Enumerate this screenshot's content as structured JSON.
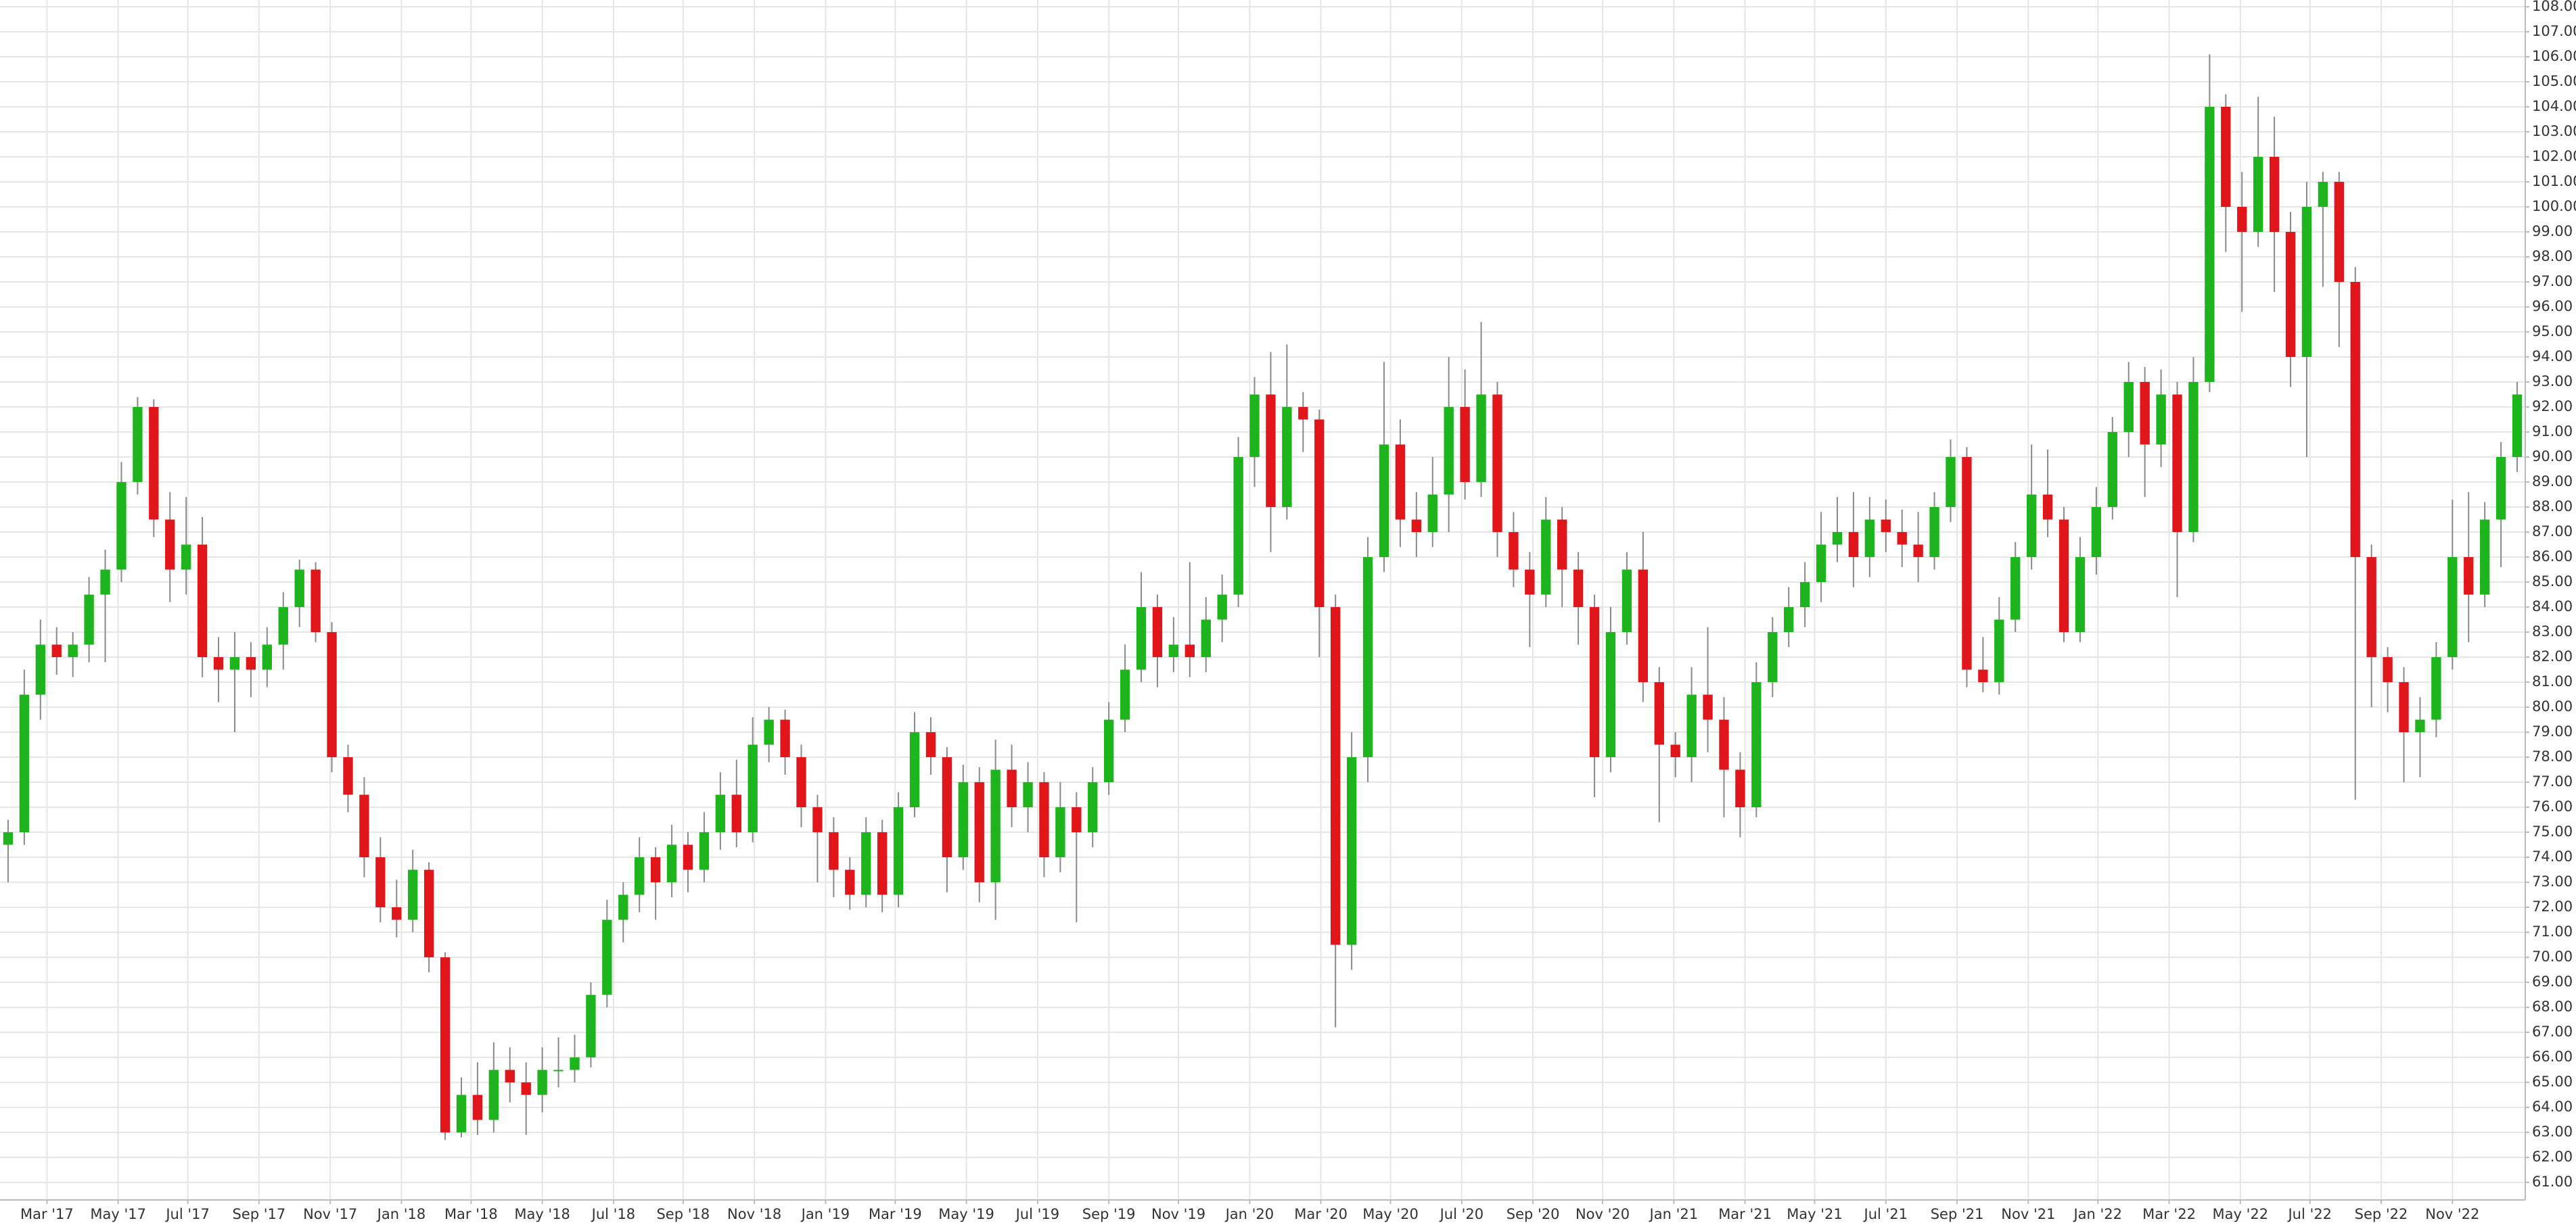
{
  "chart_data": {
    "type": "candlestick",
    "up_color": "#1db41d",
    "down_color": "#e0161b",
    "wick_color": "#8a8a8a",
    "grid": true,
    "xlim": [
      -0.5,
      155.5
    ],
    "ylim": [
      60.3,
      108.27
    ],
    "xticks": [
      {
        "value": 2.4,
        "label": "Mar '17"
      },
      {
        "value": 6.8,
        "label": "May '17"
      },
      {
        "value": 11.1,
        "label": "Jul '17"
      },
      {
        "value": 15.5,
        "label": "Sep '17"
      },
      {
        "value": 19.9,
        "label": "Nov '17"
      },
      {
        "value": 24.3,
        "label": "Jan '18"
      },
      {
        "value": 28.6,
        "label": "Mar '18"
      },
      {
        "value": 33.0,
        "label": "May '18"
      },
      {
        "value": 37.4,
        "label": "Jul '18"
      },
      {
        "value": 41.7,
        "label": "Sep '18"
      },
      {
        "value": 46.1,
        "label": "Nov '18"
      },
      {
        "value": 50.5,
        "label": "Jan '19"
      },
      {
        "value": 54.8,
        "label": "Mar '19"
      },
      {
        "value": 59.2,
        "label": "May '19"
      },
      {
        "value": 63.6,
        "label": "Jul '19"
      },
      {
        "value": 68.0,
        "label": "Sep '19"
      },
      {
        "value": 72.3,
        "label": "Nov '19"
      },
      {
        "value": 76.7,
        "label": "Jan '20"
      },
      {
        "value": 81.1,
        "label": "Mar '20"
      },
      {
        "value": 85.4,
        "label": "May '20"
      },
      {
        "value": 89.8,
        "label": "Jul '20"
      },
      {
        "value": 94.2,
        "label": "Sep '20"
      },
      {
        "value": 98.5,
        "label": "Nov '20"
      },
      {
        "value": 102.9,
        "label": "Jan '21"
      },
      {
        "value": 107.3,
        "label": "Mar '21"
      },
      {
        "value": 111.6,
        "label": "May '21"
      },
      {
        "value": 116.0,
        "label": "Jul '21"
      },
      {
        "value": 120.4,
        "label": "Sep '21"
      },
      {
        "value": 124.8,
        "label": "Nov '21"
      },
      {
        "value": 129.1,
        "label": "Jan '22"
      },
      {
        "value": 133.5,
        "label": "Mar '22"
      },
      {
        "value": 137.9,
        "label": "May '22"
      },
      {
        "value": 142.2,
        "label": "Jul '22"
      },
      {
        "value": 146.6,
        "label": "Sep '22"
      },
      {
        "value": 151.0,
        "label": "Nov '22"
      }
    ],
    "yticks": [
      {
        "value": 61,
        "label": "61.00"
      },
      {
        "value": 62,
        "label": "62.00"
      },
      {
        "value": 63,
        "label": "63.00"
      },
      {
        "value": 64,
        "label": "64.00"
      },
      {
        "value": 65,
        "label": "65.00"
      },
      {
        "value": 66,
        "label": "66.00"
      },
      {
        "value": 67,
        "label": "67.00"
      },
      {
        "value": 68,
        "label": "68.00"
      },
      {
        "value": 69,
        "label": "69.00"
      },
      {
        "value": 70,
        "label": "70.00"
      },
      {
        "value": 71,
        "label": "71.00"
      },
      {
        "value": 72,
        "label": "72.00"
      },
      {
        "value": 73,
        "label": "73.00"
      },
      {
        "value": 74,
        "label": "74.00"
      },
      {
        "value": 75,
        "label": "75.00"
      },
      {
        "value": 76,
        "label": "76.00"
      },
      {
        "value": 77,
        "label": "77.00"
      },
      {
        "value": 78,
        "label": "78.00"
      },
      {
        "value": 79,
        "label": "79.00"
      },
      {
        "value": 80,
        "label": "80.00"
      },
      {
        "value": 81,
        "label": "81.00"
      },
      {
        "value": 82,
        "label": "82.00"
      },
      {
        "value": 83,
        "label": "83.00"
      },
      {
        "value": 84,
        "label": "84.00"
      },
      {
        "value": 85,
        "label": "85.00"
      },
      {
        "value": 86,
        "label": "86.00"
      },
      {
        "value": 87,
        "label": "87.00"
      },
      {
        "value": 88,
        "label": "88.00"
      },
      {
        "value": 89,
        "label": "89.00"
      },
      {
        "value": 90,
        "label": "90.00"
      },
      {
        "value": 91,
        "label": "91.00"
      },
      {
        "value": 92,
        "label": "92.00"
      },
      {
        "value": 93,
        "label": "93.00"
      },
      {
        "value": 94,
        "label": "94.00"
      },
      {
        "value": 95,
        "label": "95.00"
      },
      {
        "value": 96,
        "label": "96.00"
      },
      {
        "value": 97,
        "label": "97.00"
      },
      {
        "value": 98,
        "label": "98.00"
      },
      {
        "value": 99,
        "label": "99.00"
      },
      {
        "value": 100,
        "label": "100.00"
      },
      {
        "value": 101,
        "label": "101.00"
      },
      {
        "value": 102,
        "label": "102.00"
      },
      {
        "value": 103,
        "label": "103.00"
      },
      {
        "value": 104,
        "label": "104.00"
      },
      {
        "value": 105,
        "label": "105.00"
      },
      {
        "value": 106,
        "label": "106.00"
      },
      {
        "value": 107,
        "label": "107.00"
      },
      {
        "value": 108,
        "label": "108.00"
      }
    ],
    "candles": [
      [
        74.5,
        75.5,
        73.0,
        75.0
      ],
      [
        75.0,
        81.5,
        74.5,
        80.5
      ],
      [
        80.5,
        83.5,
        79.5,
        82.5
      ],
      [
        82.5,
        83.2,
        81.3,
        82.0
      ],
      [
        82.0,
        83.0,
        81.2,
        82.5
      ],
      [
        82.5,
        85.2,
        81.8,
        84.5
      ],
      [
        84.5,
        86.3,
        81.8,
        85.5
      ],
      [
        85.5,
        89.8,
        85.0,
        89.0
      ],
      [
        89.0,
        92.4,
        88.5,
        92.0
      ],
      [
        92.0,
        92.3,
        86.8,
        87.5
      ],
      [
        87.5,
        88.6,
        84.2,
        85.5
      ],
      [
        85.5,
        88.4,
        84.5,
        86.5
      ],
      [
        86.5,
        87.6,
        81.2,
        82.0
      ],
      [
        82.0,
        82.8,
        80.2,
        81.5
      ],
      [
        81.5,
        83.0,
        79.0,
        82.0
      ],
      [
        82.0,
        82.6,
        80.4,
        81.5
      ],
      [
        81.5,
        83.2,
        80.8,
        82.5
      ],
      [
        82.5,
        84.6,
        81.5,
        84.0
      ],
      [
        84.0,
        85.9,
        83.2,
        85.5
      ],
      [
        85.5,
        85.8,
        82.6,
        83.0
      ],
      [
        83.0,
        83.4,
        77.4,
        78.0
      ],
      [
        78.0,
        78.5,
        75.8,
        76.5
      ],
      [
        76.5,
        77.2,
        73.2,
        74.0
      ],
      [
        74.0,
        74.8,
        71.4,
        72.0
      ],
      [
        72.0,
        73.1,
        70.8,
        71.5
      ],
      [
        71.5,
        74.3,
        71.0,
        73.5
      ],
      [
        73.5,
        73.8,
        69.4,
        70.0
      ],
      [
        70.0,
        70.2,
        62.7,
        63.0
      ],
      [
        63.0,
        65.2,
        62.8,
        64.5
      ],
      [
        64.5,
        65.8,
        62.9,
        63.5
      ],
      [
        63.5,
        66.6,
        63.0,
        65.5
      ],
      [
        65.5,
        66.4,
        64.2,
        65.0
      ],
      [
        65.0,
        65.8,
        62.9,
        64.5
      ],
      [
        64.5,
        66.4,
        63.8,
        65.5
      ],
      [
        65.5,
        66.8,
        64.8,
        65.5
      ],
      [
        65.5,
        66.9,
        65.0,
        66.0
      ],
      [
        66.0,
        69.0,
        65.6,
        68.5
      ],
      [
        68.5,
        72.3,
        68.0,
        71.5
      ],
      [
        71.5,
        73.0,
        70.6,
        72.5
      ],
      [
        72.5,
        74.8,
        71.8,
        74.0
      ],
      [
        74.0,
        74.4,
        71.5,
        73.0
      ],
      [
        73.0,
        75.3,
        72.4,
        74.5
      ],
      [
        74.5,
        75.0,
        72.6,
        73.5
      ],
      [
        73.5,
        75.8,
        73.0,
        75.0
      ],
      [
        75.0,
        77.4,
        74.3,
        76.5
      ],
      [
        76.5,
        77.9,
        74.4,
        75.0
      ],
      [
        75.0,
        79.6,
        74.6,
        78.5
      ],
      [
        78.5,
        80.0,
        77.8,
        79.5
      ],
      [
        79.5,
        79.9,
        77.3,
        78.0
      ],
      [
        78.0,
        78.5,
        75.2,
        76.0
      ],
      [
        76.0,
        76.5,
        73.0,
        75.0
      ],
      [
        75.0,
        75.6,
        72.4,
        73.5
      ],
      [
        73.5,
        74.0,
        71.9,
        72.5
      ],
      [
        72.5,
        75.6,
        72.0,
        75.0
      ],
      [
        75.0,
        75.5,
        71.8,
        72.5
      ],
      [
        72.5,
        76.6,
        72.0,
        76.0
      ],
      [
        76.0,
        79.8,
        75.6,
        79.0
      ],
      [
        79.0,
        79.6,
        77.3,
        78.0
      ],
      [
        78.0,
        78.4,
        72.6,
        74.0
      ],
      [
        74.0,
        77.7,
        73.5,
        77.0
      ],
      [
        77.0,
        77.6,
        72.2,
        73.0
      ],
      [
        73.0,
        78.7,
        71.5,
        77.5
      ],
      [
        77.5,
        78.5,
        75.2,
        76.0
      ],
      [
        76.0,
        77.8,
        75.0,
        77.0
      ],
      [
        77.0,
        77.4,
        73.2,
        74.0
      ],
      [
        74.0,
        77.0,
        73.4,
        76.0
      ],
      [
        76.0,
        76.6,
        71.4,
        75.0
      ],
      [
        75.0,
        77.6,
        74.4,
        77.0
      ],
      [
        77.0,
        80.2,
        76.5,
        79.5
      ],
      [
        79.5,
        82.5,
        79.0,
        81.5
      ],
      [
        81.5,
        85.4,
        81.0,
        84.0
      ],
      [
        84.0,
        84.5,
        80.8,
        82.0
      ],
      [
        82.0,
        83.6,
        81.4,
        82.5
      ],
      [
        82.5,
        85.8,
        81.2,
        82.0
      ],
      [
        82.0,
        84.4,
        81.4,
        83.5
      ],
      [
        83.5,
        85.3,
        82.6,
        84.5
      ],
      [
        84.5,
        90.8,
        84.0,
        90.0
      ],
      [
        90.0,
        93.2,
        88.8,
        92.5
      ],
      [
        92.5,
        94.2,
        86.2,
        88.0
      ],
      [
        88.0,
        94.5,
        87.5,
        92.0
      ],
      [
        92.0,
        92.6,
        90.2,
        91.5
      ],
      [
        91.5,
        91.9,
        82.0,
        84.0
      ],
      [
        84.0,
        84.5,
        67.2,
        70.5
      ],
      [
        70.5,
        79.0,
        69.5,
        78.0
      ],
      [
        78.0,
        86.8,
        77.0,
        86.0
      ],
      [
        86.0,
        93.8,
        85.4,
        90.5
      ],
      [
        90.5,
        91.5,
        86.4,
        87.5
      ],
      [
        87.5,
        88.6,
        86.0,
        87.0
      ],
      [
        87.0,
        90.0,
        86.4,
        88.5
      ],
      [
        88.5,
        94.0,
        87.0,
        92.0
      ],
      [
        92.0,
        93.5,
        88.3,
        89.0
      ],
      [
        89.0,
        95.4,
        88.4,
        92.5
      ],
      [
        92.5,
        93.0,
        86.0,
        87.0
      ],
      [
        87.0,
        87.8,
        84.8,
        85.5
      ],
      [
        85.5,
        86.2,
        82.4,
        84.5
      ],
      [
        84.5,
        88.4,
        84.0,
        87.5
      ],
      [
        87.5,
        88.0,
        84.0,
        85.5
      ],
      [
        85.5,
        86.2,
        82.5,
        84.0
      ],
      [
        84.0,
        84.5,
        76.4,
        78.0
      ],
      [
        78.0,
        84.0,
        77.4,
        83.0
      ],
      [
        83.0,
        86.2,
        82.5,
        85.5
      ],
      [
        85.5,
        87.0,
        80.2,
        81.0
      ],
      [
        81.0,
        81.6,
        75.4,
        78.5
      ],
      [
        78.5,
        79.0,
        77.2,
        78.0
      ],
      [
        78.0,
        81.6,
        77.0,
        80.5
      ],
      [
        80.5,
        83.2,
        78.2,
        79.5
      ],
      [
        79.5,
        80.4,
        75.6,
        77.5
      ],
      [
        77.5,
        78.2,
        74.8,
        76.0
      ],
      [
        76.0,
        81.8,
        75.6,
        81.0
      ],
      [
        81.0,
        83.6,
        80.4,
        83.0
      ],
      [
        83.0,
        84.8,
        82.4,
        84.0
      ],
      [
        84.0,
        85.8,
        83.2,
        85.0
      ],
      [
        85.0,
        87.8,
        84.2,
        86.5
      ],
      [
        86.5,
        88.4,
        85.8,
        87.0
      ],
      [
        87.0,
        88.6,
        84.8,
        86.0
      ],
      [
        86.0,
        88.4,
        85.2,
        87.5
      ],
      [
        87.5,
        88.3,
        86.2,
        87.0
      ],
      [
        87.0,
        87.9,
        85.6,
        86.5
      ],
      [
        86.5,
        87.8,
        85.0,
        86.0
      ],
      [
        86.0,
        88.6,
        85.5,
        88.0
      ],
      [
        88.0,
        90.7,
        87.4,
        90.0
      ],
      [
        90.0,
        90.4,
        80.8,
        81.5
      ],
      [
        81.5,
        82.8,
        80.6,
        81.0
      ],
      [
        81.0,
        84.4,
        80.5,
        83.5
      ],
      [
        83.5,
        86.6,
        83.0,
        86.0
      ],
      [
        86.0,
        90.5,
        85.5,
        88.5
      ],
      [
        88.5,
        90.3,
        86.8,
        87.5
      ],
      [
        87.5,
        88.0,
        82.6,
        83.0
      ],
      [
        83.0,
        86.8,
        82.6,
        86.0
      ],
      [
        86.0,
        88.8,
        85.3,
        88.0
      ],
      [
        88.0,
        91.6,
        87.5,
        91.0
      ],
      [
        91.0,
        93.8,
        90.0,
        93.0
      ],
      [
        93.0,
        93.6,
        88.4,
        90.5
      ],
      [
        90.5,
        93.5,
        89.6,
        92.5
      ],
      [
        92.5,
        93.0,
        84.4,
        87.0
      ],
      [
        87.0,
        94.0,
        86.6,
        93.0
      ],
      [
        93.0,
        106.1,
        92.6,
        104.0
      ],
      [
        104.0,
        104.5,
        98.2,
        100.0
      ],
      [
        100.0,
        101.4,
        95.8,
        99.0
      ],
      [
        99.0,
        104.4,
        98.4,
        102.0
      ],
      [
        102.0,
        103.6,
        96.6,
        99.0
      ],
      [
        99.0,
        99.8,
        92.8,
        94.0
      ],
      [
        94.0,
        101.0,
        90.0,
        100.0
      ],
      [
        100.0,
        101.4,
        96.8,
        101.0
      ],
      [
        101.0,
        101.4,
        94.4,
        97.0
      ],
      [
        97.0,
        97.6,
        76.3,
        86.0
      ],
      [
        86.0,
        86.5,
        80.0,
        82.0
      ],
      [
        82.0,
        82.4,
        79.8,
        81.0
      ],
      [
        81.0,
        81.6,
        77.0,
        79.0
      ],
      [
        79.0,
        80.4,
        77.2,
        79.5
      ],
      [
        79.5,
        82.6,
        78.8,
        82.0
      ],
      [
        82.0,
        88.3,
        81.5,
        86.0
      ],
      [
        86.0,
        88.6,
        82.6,
        84.5
      ],
      [
        84.5,
        88.2,
        84.0,
        87.5
      ],
      [
        87.5,
        90.6,
        85.6,
        90.0
      ],
      [
        90.0,
        93.0,
        89.4,
        92.5
      ]
    ]
  }
}
